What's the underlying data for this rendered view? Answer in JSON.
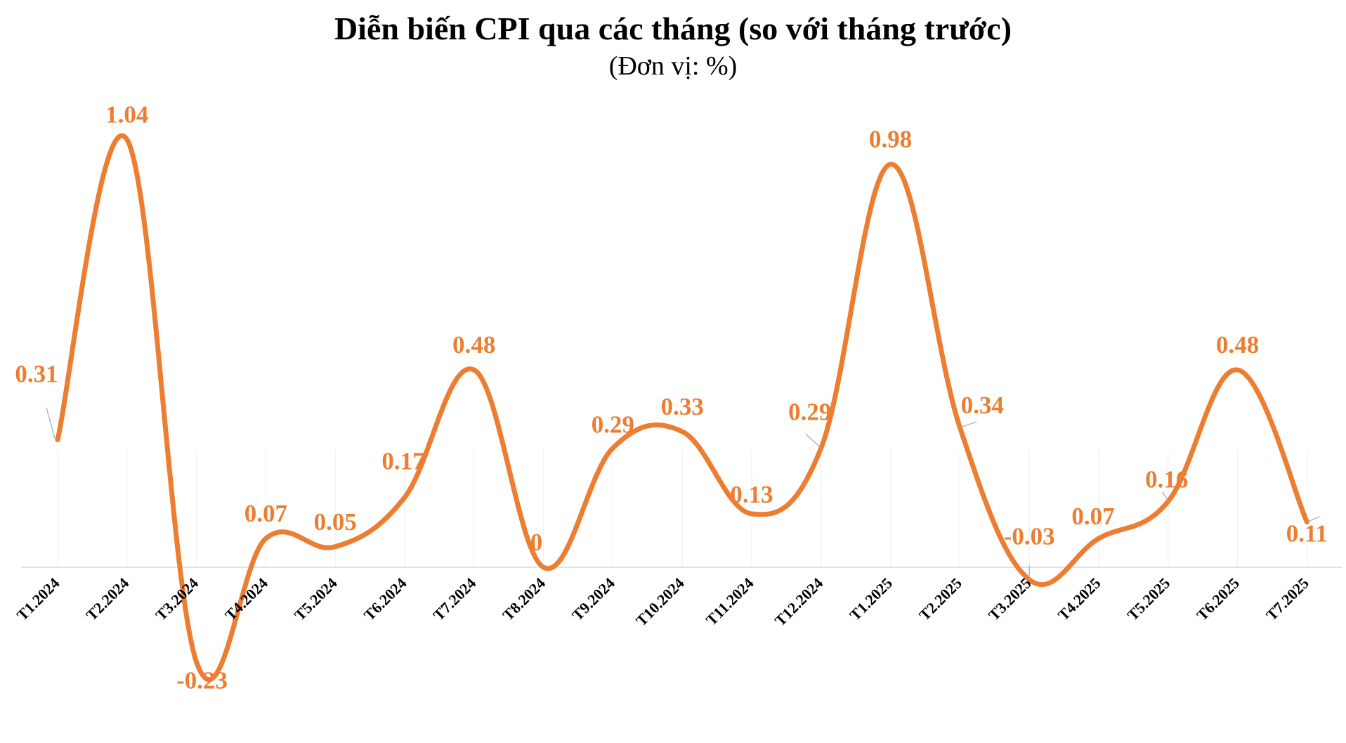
{
  "chart_data": {
    "type": "line",
    "title": "Diễn biến CPI qua các tháng (so với tháng trước)",
    "subtitle": "(Đơn vị: %)",
    "xlabel": "",
    "ylabel": "",
    "grid": false,
    "ylim": [
      -0.27,
      1.1
    ],
    "color": "#ED7D31",
    "categories": [
      "T1.2024",
      "T2.2024",
      "T3.2024",
      "T4.2024",
      "T5.2024",
      "T6.2024",
      "T7.2024",
      "T8.2024",
      "T9.2024",
      "T10.2024",
      "T11.2024",
      "T12.2024",
      "T1.2025",
      "T2.2025",
      "T3.2025",
      "T4.2025",
      "T5.2025",
      "T6.2025",
      "T7.2025"
    ],
    "values": [
      0.31,
      1.04,
      -0.23,
      0.07,
      0.05,
      0.17,
      0.48,
      0,
      0.29,
      0.33,
      0.13,
      0.29,
      0.98,
      0.34,
      -0.03,
      0.07,
      0.16,
      0.48,
      0.11
    ],
    "data_labels": [
      "0.31",
      "1.04",
      "-0.23",
      "0.07",
      "0.05",
      "0.17",
      "0.48",
      "0",
      "0.29",
      "0.33",
      "0.13",
      "0.29",
      "0.98",
      "0.34",
      "-0.03",
      "0.07",
      "0.16",
      "0.48",
      "0.11"
    ]
  }
}
